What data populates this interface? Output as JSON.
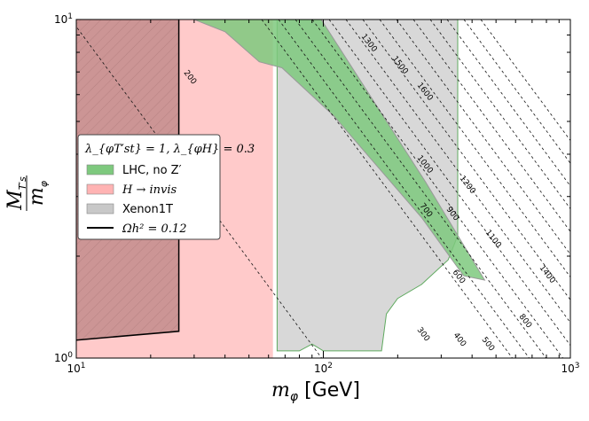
{
  "chart_data": {
    "type": "area",
    "xlabel_symbol": "m",
    "xlabel_sub": "φ",
    "xlabel_unit": "[GeV]",
    "ylabel_num": "M",
    "ylabel_num_sub": "T′s",
    "ylabel_den": "m",
    "ylabel_den_sub": "φ",
    "xscale": "log",
    "yscale": "log",
    "xlim": [
      10,
      1000
    ],
    "ylim": [
      1,
      10
    ],
    "x_ticks": [
      {
        "value": 10,
        "base": "10",
        "exp": "1"
      },
      {
        "value": 100,
        "base": "10",
        "exp": "2"
      },
      {
        "value": 1000,
        "base": "10",
        "exp": "3"
      }
    ],
    "y_ticks": [
      {
        "value": 1,
        "base": "10",
        "exp": "0"
      },
      {
        "value": 10,
        "base": "10",
        "exp": "1"
      }
    ],
    "legend": {
      "title": "λ_{φT′st} = 1,  λ_{φH} = 0.3",
      "position": "left",
      "entries": [
        {
          "label": "LHC, no Z′",
          "color": "#7ec97e",
          "kind": "patch"
        },
        {
          "label": "H → invis",
          "color": "#ffb3b3",
          "kind": "patch"
        },
        {
          "label": "Xenon1T",
          "color": "#c8c8c8",
          "kind": "patch"
        },
        {
          "label": "Ωh² = 0.12",
          "color": "#000000",
          "kind": "line"
        }
      ]
    },
    "regions": [
      {
        "name": "Xenon1T",
        "color": "#c8c8c8",
        "points": [
          [
            65,
            10
          ],
          [
            350,
            10
          ],
          [
            350,
            2.3
          ],
          [
            320,
            1.95
          ],
          [
            250,
            1.65
          ],
          [
            200,
            1.5
          ],
          [
            180,
            1.35
          ],
          [
            172,
            1.05
          ],
          [
            100,
            1.05
          ],
          [
            90,
            1.1
          ],
          [
            80,
            1.05
          ],
          [
            65,
            1.05
          ]
        ]
      },
      {
        "name": "H → invis",
        "color": "#ffb3b3",
        "points": [
          [
            10,
            1
          ],
          [
            62.5,
            1
          ],
          [
            62.5,
            10
          ],
          [
            10,
            10
          ]
        ]
      },
      {
        "name": "LHC, no Z′",
        "color": "#7ec97e",
        "points": [
          [
            30,
            10
          ],
          [
            98,
            10
          ],
          [
            260,
            3.3
          ],
          [
            450,
            1.7
          ],
          [
            370,
            1.75
          ],
          [
            250,
            2.6
          ],
          [
            110,
            5.2
          ],
          [
            68,
            7.2
          ],
          [
            55,
            7.5
          ],
          [
            40,
            9.2
          ]
        ]
      },
      {
        "name": "Ωh² = 0.12",
        "color": "#a36a6a",
        "points": [
          [
            10,
            1.13
          ],
          [
            26,
            1.2
          ],
          [
            26,
            10
          ],
          [
            10,
            10
          ]
        ]
      }
    ],
    "omega_curve": [
      [
        10,
        1.13
      ],
      [
        26,
        1.2
      ],
      [
        26,
        10
      ]
    ],
    "mass_contours": [
      {
        "label": "200",
        "offset": 0
      },
      {
        "label": "300",
        "offset": 1
      },
      {
        "label": "400",
        "offset": 2
      },
      {
        "label": "500",
        "offset": 3
      },
      {
        "label": "600",
        "offset": 4
      },
      {
        "label": "700",
        "offset": 5
      },
      {
        "label": "800",
        "offset": 6
      },
      {
        "label": "900",
        "offset": 7
      },
      {
        "label": "1000",
        "offset": 8
      },
      {
        "label": "1100",
        "offset": 9
      },
      {
        "label": "1200",
        "offset": 10
      },
      {
        "label": "1300",
        "offset": 11
      },
      {
        "label": "1400",
        "offset": 12
      },
      {
        "label": "1500",
        "offset": 13
      },
      {
        "label": "1600",
        "offset": 14
      }
    ]
  }
}
